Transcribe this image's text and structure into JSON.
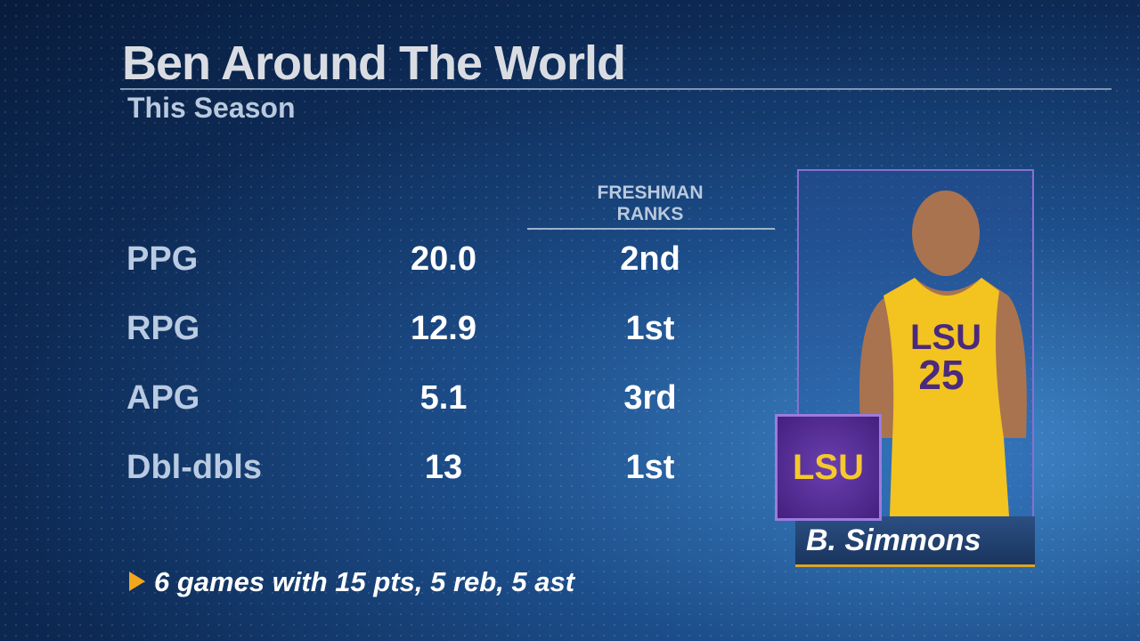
{
  "header": {
    "title": "Ben Around The World",
    "subtitle": "This Season"
  },
  "table": {
    "column_header": "FRESHMAN RANKS",
    "rows": [
      [
        "PPG",
        "20.0",
        "2nd"
      ],
      [
        "RPG",
        "12.9",
        "1st"
      ],
      [
        "APG",
        "5.1",
        "3rd"
      ],
      [
        "Dbl-dbls",
        "13",
        "1st"
      ]
    ]
  },
  "footnote": "6 games with 15 pts, 5 reb, 5 ast",
  "player": {
    "team_logo": "LSU",
    "name": "B. Simmons",
    "jersey": {
      "wordmark": "LSU",
      "number": "25"
    }
  }
}
